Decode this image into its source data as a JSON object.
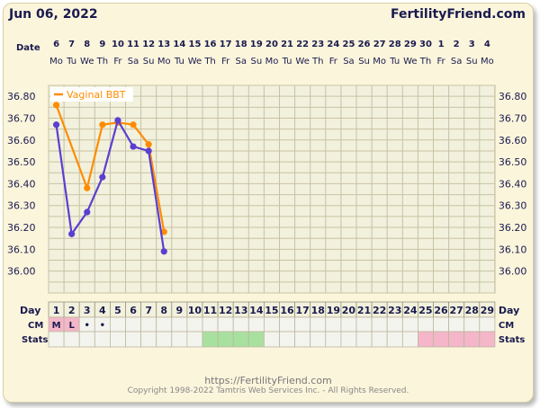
{
  "header": {
    "date": "Jun 06, 2022",
    "brand": "FertilityFriend.com"
  },
  "footer": {
    "url": "https://FertilityFriend.com",
    "copyright": "Copyright 1998-2022 Tamtris Web Services Inc. - All Rights Reserved."
  },
  "row_labels": {
    "date": "Date",
    "day": "Day",
    "cm": "CM",
    "stats": "Stats"
  },
  "colors": {
    "bbt_line": "#ff8c00",
    "temp_line": "#5a3fd0",
    "grid": "#c9c2a4",
    "plot_bg": "#f1f1dd",
    "stats_green": "#a8e0a0",
    "stats_pink": "#f4b6c8",
    "cm_pink": "#f4b6c8"
  },
  "chart_data": {
    "type": "line",
    "x_dates": [
      "6",
      "7",
      "8",
      "9",
      "10",
      "11",
      "12",
      "13",
      "14",
      "15",
      "16",
      "17",
      "18",
      "19",
      "20",
      "21",
      "22",
      "23",
      "24",
      "25",
      "26",
      "27",
      "28",
      "29",
      "30",
      "1",
      "2",
      "3",
      "4"
    ],
    "x_weekdays": [
      "Mo",
      "Tu",
      "We",
      "Th",
      "Fr",
      "Sa",
      "Su",
      "Mo",
      "Tu",
      "We",
      "Th",
      "Fr",
      "Sa",
      "Su",
      "Mo",
      "Tu",
      "We",
      "Th",
      "Fr",
      "Sa",
      "Su",
      "Mo",
      "Tu",
      "We",
      "Th",
      "Fr",
      "Sa",
      "Su",
      "Mo"
    ],
    "cycle_days": [
      "1",
      "2",
      "3",
      "4",
      "5",
      "6",
      "7",
      "8",
      "9",
      "10",
      "11",
      "12",
      "13",
      "14",
      "15",
      "16",
      "17",
      "18",
      "19",
      "20",
      "21",
      "22",
      "23",
      "24",
      "25",
      "26",
      "27",
      "28",
      "29"
    ],
    "y_ticks": [
      "36.80",
      "36.70",
      "36.60",
      "36.50",
      "36.40",
      "36.30",
      "36.20",
      "36.10",
      "36.00"
    ],
    "ylim": [
      35.9,
      36.85
    ],
    "series": [
      {
        "name": "Vaginal BBT",
        "color": "#ff8c00",
        "values": [
          36.76,
          null,
          36.38,
          36.67,
          36.68,
          36.67,
          36.58,
          36.18
        ]
      },
      {
        "name": "",
        "color": "#5a3fd0",
        "values": [
          36.67,
          36.17,
          36.27,
          36.43,
          36.69,
          36.57,
          36.55,
          36.09
        ]
      }
    ],
    "cm": [
      "M",
      "L",
      "•",
      "•",
      "",
      "",
      "",
      "",
      "",
      "",
      "",
      "",
      "",
      "",
      "",
      "",
      "",
      "",
      "",
      "",
      "",
      "",
      "",
      "",
      "",
      "",
      "",
      "",
      ""
    ],
    "cm_highlight": [
      true,
      true,
      false,
      false,
      false,
      false,
      false,
      false,
      false,
      false,
      false,
      false,
      false,
      false,
      false,
      false,
      false,
      false,
      false,
      false,
      false,
      false,
      false,
      false,
      false,
      false,
      false,
      false,
      false
    ],
    "stats_marks": [
      "",
      "",
      "",
      "",
      "",
      "",
      "",
      "",
      "",
      "",
      "g",
      "g",
      "g",
      "g",
      "",
      "",
      "",
      "",
      "",
      "",
      "",
      "",
      "",
      "",
      "p",
      "p",
      "p",
      "p",
      "p"
    ]
  }
}
